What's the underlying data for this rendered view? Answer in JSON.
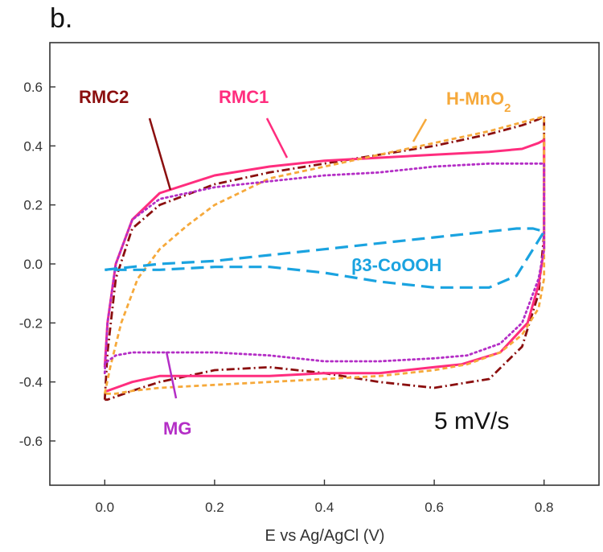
{
  "chart_data": {
    "type": "line",
    "panel_label": "b.",
    "title": "",
    "xlabel": "E vs Ag/AgCl (V)",
    "ylabel": "",
    "xlim": [
      -0.1,
      0.9
    ],
    "ylim": [
      -0.75,
      0.75
    ],
    "x_ticks": [
      0.0,
      0.2,
      0.4,
      0.6,
      0.8
    ],
    "x_tick_labels": [
      "0.0",
      "0.2",
      "0.4",
      "0.6",
      "0.8"
    ],
    "y_ticks": [
      0.6,
      0.4,
      0.2,
      0.0,
      -0.2,
      -0.4,
      -0.6
    ],
    "y_tick_labels": [
      "0.6",
      "0.4",
      "0.2",
      "0.0",
      "-0.2",
      "-0.4",
      "-0.6"
    ],
    "grid": false,
    "annotation": "5 mV/s",
    "series": [
      {
        "name": "RMC2",
        "color": "#8b0f0f",
        "dash": "dashdot",
        "label": "RMC2",
        "x": [
          0.0,
          0.005,
          0.02,
          0.05,
          0.1,
          0.2,
          0.3,
          0.4,
          0.5,
          0.6,
          0.7,
          0.76,
          0.79,
          0.8,
          0.8,
          0.79,
          0.76,
          0.7,
          0.6,
          0.5,
          0.4,
          0.3,
          0.2,
          0.1,
          0.05,
          0.02,
          0.005,
          0.0,
          0.0
        ],
        "y": [
          -0.46,
          -0.3,
          -0.05,
          0.12,
          0.2,
          0.27,
          0.31,
          0.34,
          0.37,
          0.4,
          0.44,
          0.47,
          0.49,
          0.5,
          0.1,
          -0.1,
          -0.28,
          -0.39,
          -0.42,
          -0.4,
          -0.37,
          -0.35,
          -0.36,
          -0.4,
          -0.43,
          -0.45,
          -0.46,
          -0.46,
          -0.46
        ]
      },
      {
        "name": "RMC1",
        "color": "#ff2d7e",
        "dash": "solid",
        "label": "RMC1",
        "x": [
          0.0,
          0.005,
          0.02,
          0.05,
          0.1,
          0.2,
          0.3,
          0.4,
          0.5,
          0.6,
          0.7,
          0.76,
          0.79,
          0.8,
          0.8,
          0.79,
          0.77,
          0.72,
          0.65,
          0.6,
          0.5,
          0.4,
          0.3,
          0.2,
          0.1,
          0.05,
          0.02,
          0.005,
          0.0
        ],
        "y": [
          -0.35,
          -0.2,
          0.0,
          0.15,
          0.24,
          0.3,
          0.33,
          0.35,
          0.36,
          0.37,
          0.38,
          0.39,
          0.41,
          0.42,
          0.05,
          -0.07,
          -0.2,
          -0.3,
          -0.34,
          -0.35,
          -0.37,
          -0.37,
          -0.38,
          -0.38,
          -0.38,
          -0.4,
          -0.42,
          -0.43,
          -0.43
        ]
      },
      {
        "name": "H-MnO₂",
        "color": "#f6a93b",
        "dash": "dash",
        "label": "H-MnO",
        "label_sub": "2",
        "x": [
          0.0,
          0.01,
          0.03,
          0.06,
          0.1,
          0.15,
          0.2,
          0.3,
          0.4,
          0.5,
          0.6,
          0.7,
          0.76,
          0.8,
          0.8,
          0.79,
          0.76,
          0.72,
          0.66,
          0.6,
          0.5,
          0.4,
          0.3,
          0.2,
          0.1,
          0.05,
          0.02,
          0.0
        ],
        "y": [
          -0.44,
          -0.35,
          -0.2,
          -0.05,
          0.05,
          0.13,
          0.2,
          0.29,
          0.33,
          0.37,
          0.41,
          0.45,
          0.48,
          0.5,
          -0.05,
          -0.15,
          -0.24,
          -0.3,
          -0.34,
          -0.36,
          -0.38,
          -0.39,
          -0.4,
          -0.41,
          -0.42,
          -0.43,
          -0.44,
          -0.44
        ]
      },
      {
        "name": "MG",
        "color": "#b42ec6",
        "dash": "dot",
        "label": "MG",
        "x": [
          0.0,
          0.005,
          0.02,
          0.05,
          0.1,
          0.2,
          0.3,
          0.4,
          0.5,
          0.6,
          0.7,
          0.76,
          0.79,
          0.8,
          0.8,
          0.79,
          0.76,
          0.72,
          0.66,
          0.6,
          0.5,
          0.4,
          0.3,
          0.2,
          0.1,
          0.05,
          0.02,
          0.005,
          0.0
        ],
        "y": [
          -0.37,
          -0.2,
          0.0,
          0.15,
          0.22,
          0.26,
          0.28,
          0.3,
          0.31,
          0.33,
          0.34,
          0.34,
          0.34,
          0.34,
          0.05,
          -0.05,
          -0.2,
          -0.27,
          -0.31,
          -0.32,
          -0.33,
          -0.33,
          -0.31,
          -0.3,
          -0.3,
          -0.3,
          -0.31,
          -0.33,
          -0.34
        ]
      },
      {
        "name": "β3-CoOOH",
        "color": "#1aa3e0",
        "dash": "longdash",
        "label": "β3-CoOOH",
        "x": [
          0.0,
          0.05,
          0.1,
          0.2,
          0.3,
          0.4,
          0.5,
          0.6,
          0.7,
          0.75,
          0.78,
          0.8,
          0.78,
          0.75,
          0.7,
          0.6,
          0.5,
          0.4,
          0.3,
          0.2,
          0.1,
          0.05,
          0.0
        ],
        "y": [
          -0.02,
          -0.01,
          0.0,
          0.01,
          0.03,
          0.05,
          0.07,
          0.09,
          0.11,
          0.12,
          0.12,
          0.11,
          0.05,
          -0.04,
          -0.08,
          -0.08,
          -0.06,
          -0.03,
          -0.01,
          -0.01,
          -0.02,
          -0.02,
          -0.02
        ]
      }
    ]
  }
}
